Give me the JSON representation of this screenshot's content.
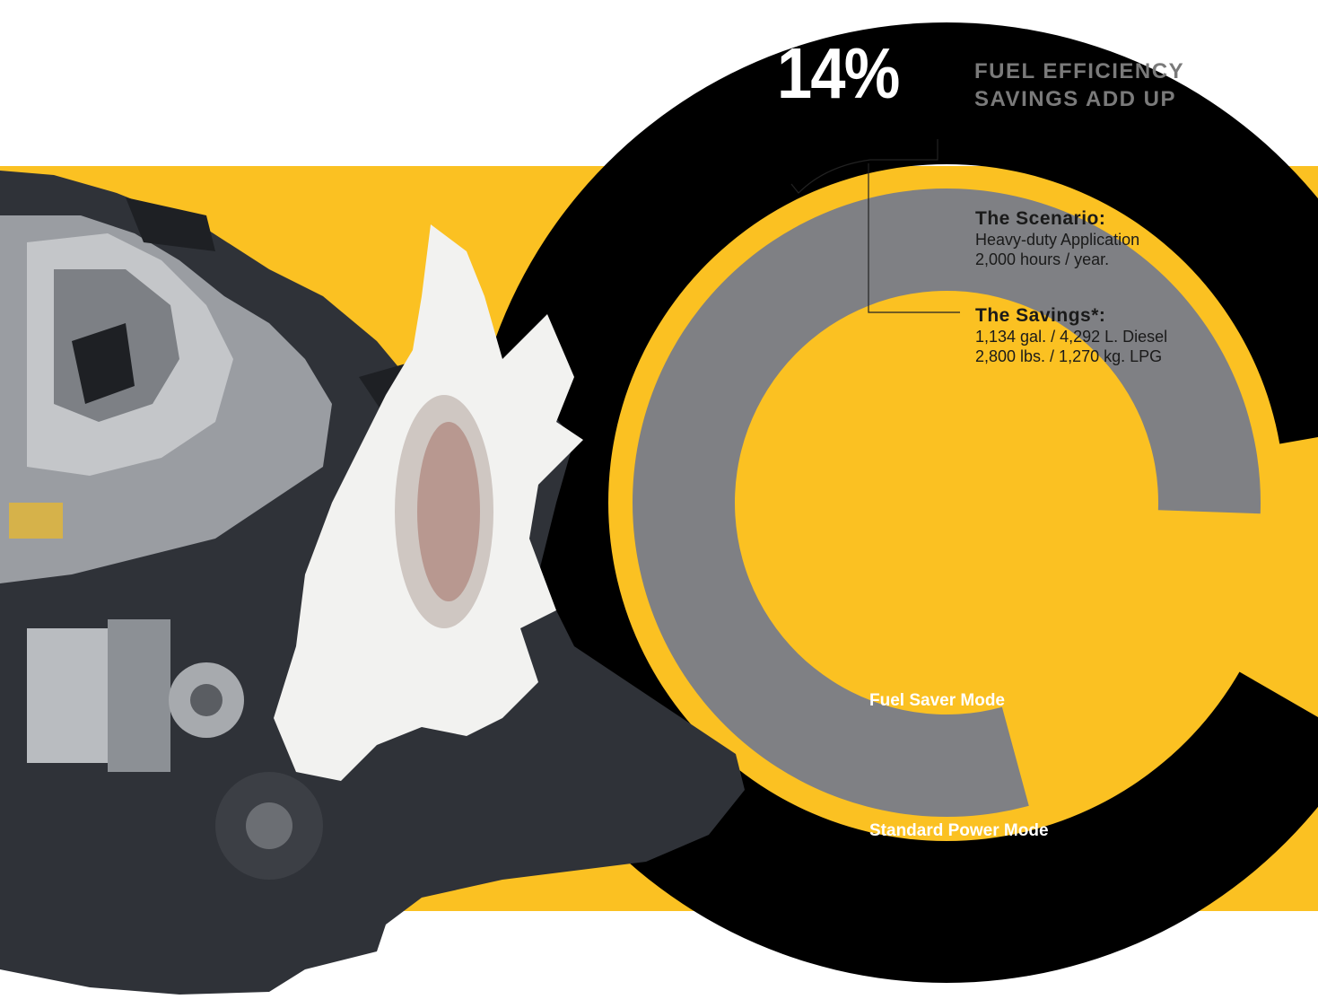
{
  "colors": {
    "background": "#ffffff",
    "accent_yellow": "#fbc122",
    "standard_ring": "#000000",
    "saver_ring": "#7f8084",
    "headline_gray": "#7a7a7a",
    "engine_dark": "#2f3238",
    "engine_metal": "#9a9da2",
    "fan_white": "#f2f2f0"
  },
  "headline": {
    "percent": "14%",
    "title": "FUEL EFFICIENCY\nSAVINGS ADD UP"
  },
  "scenario": {
    "title": "The Scenario:",
    "lines": [
      "Heavy-duty Application",
      "2,000 hours / year."
    ]
  },
  "savings": {
    "title": "The Savings*:",
    "lines": [
      "1,134 gal. / 4,292 L. Diesel",
      "2,800 lbs. / 1,270 kg. LPG"
    ]
  },
  "chart_data": {
    "type": "radial-bar",
    "series": [
      {
        "name": "Standard Power Mode",
        "value": 100,
        "color": "#000000"
      },
      {
        "name": "Fuel Saver Mode",
        "value": 86,
        "color": "#7f8084"
      }
    ],
    "annotation": "14%",
    "max_value": 100
  },
  "illustration": {
    "icon": "engine-photo"
  }
}
